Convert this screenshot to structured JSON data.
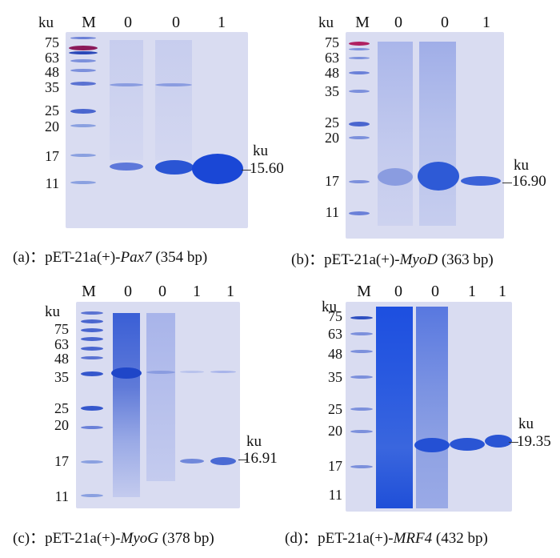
{
  "unit_label": "ku",
  "panels": [
    {
      "id": "a",
      "lanes": [
        "M",
        "0",
        "0",
        "1"
      ],
      "mw_markers": [
        "75",
        "63",
        "48",
        "35",
        "25",
        "20",
        "17",
        "11"
      ],
      "band_unit": "ku",
      "band_value": "15.60",
      "caption_prefix": "(a)：pET-21a(+)-",
      "caption_gene": "Pax7",
      "caption_suffix": " (354 bp)"
    },
    {
      "id": "b",
      "lanes": [
        "M",
        "0",
        "0",
        "1"
      ],
      "mw_markers": [
        "75",
        "63",
        "48",
        "35",
        "25",
        "20",
        "17",
        "11"
      ],
      "band_unit": "ku",
      "band_value": "16.90",
      "caption_prefix": "(b)：pET-21a(+)-",
      "caption_gene": "MyoD",
      "caption_suffix": " (363 bp)"
    },
    {
      "id": "c",
      "lanes": [
        "M",
        "0",
        "0",
        "1",
        "1"
      ],
      "mw_markers": [
        "75",
        "63",
        "48",
        "35",
        "25",
        "20",
        "17",
        "11"
      ],
      "band_unit": "ku",
      "band_value": "16.91",
      "caption_prefix": "(c)：pET-21a(+)-",
      "caption_gene": "MyoG",
      "caption_suffix": " (378 bp)"
    },
    {
      "id": "d",
      "lanes": [
        "M",
        "0",
        "0",
        "1",
        "1"
      ],
      "mw_markers": [
        "75",
        "63",
        "48",
        "35",
        "25",
        "20",
        "17",
        "11"
      ],
      "band_unit": "ku",
      "band_value": "19.35",
      "caption_prefix": "(d)：pET-21a(+)-",
      "caption_gene": "MRF4",
      "caption_suffix": " (432 bp)"
    }
  ],
  "colors": {
    "gel_background": "#d9dcf1",
    "band_strong": "#1f4fd0",
    "band_weak": "#8fa2e0",
    "marker_red": "#b02060"
  }
}
